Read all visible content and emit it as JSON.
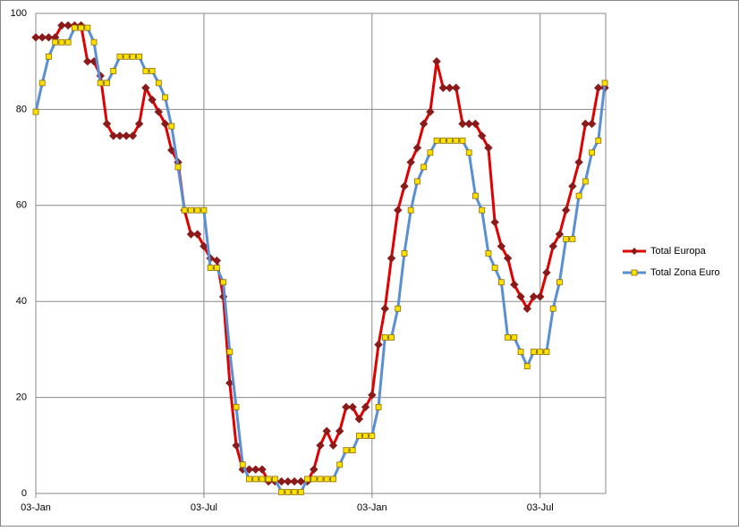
{
  "chart_data": {
    "type": "line",
    "categories": [
      "03-Jan",
      null,
      null,
      null,
      null,
      null,
      null,
      null,
      null,
      null,
      null,
      null,
      null,
      null,
      null,
      null,
      null,
      null,
      null,
      null,
      null,
      null,
      null,
      null,
      null,
      null,
      "03-Jul",
      null,
      null,
      null,
      null,
      null,
      null,
      null,
      null,
      null,
      null,
      null,
      null,
      null,
      null,
      null,
      null,
      null,
      null,
      null,
      null,
      null,
      null,
      null,
      null,
      null,
      "03-Jan",
      null,
      null,
      null,
      null,
      null,
      null,
      null,
      null,
      null,
      null,
      null,
      null,
      null,
      null,
      null,
      null,
      null,
      null,
      null,
      null,
      null,
      null,
      null,
      null,
      null,
      "03-Jul",
      null,
      null,
      null,
      null,
      null,
      null,
      null,
      null,
      null,
      null
    ],
    "series": [
      {
        "name": "Total Europa",
        "color": "#e00000",
        "marker": "diamond",
        "marker_color": "#8b1a1a",
        "values": [
          95,
          95,
          95,
          95,
          97.5,
          97.5,
          97.5,
          97.5,
          90,
          90,
          87,
          77,
          74.5,
          74.5,
          74.5,
          74.5,
          77,
          84.5,
          82,
          79.5,
          77,
          71.5,
          69,
          59,
          54,
          54,
          51.5,
          49,
          48.5,
          41,
          23,
          10,
          5,
          5,
          5,
          5,
          2.5,
          2.5,
          2.5,
          2.5,
          2.5,
          2.5,
          2.5,
          5,
          10,
          13,
          10,
          13,
          18,
          18,
          15.5,
          18,
          20.5,
          31,
          38.5,
          49,
          59,
          64,
          69,
          72,
          77,
          79.5,
          90,
          84.5,
          84.5,
          84.5,
          77,
          77,
          77,
          74.5,
          72,
          56.5,
          51.5,
          49,
          43.5,
          41,
          38.5,
          41,
          41,
          46,
          51.5,
          54,
          59,
          64,
          69,
          77,
          77,
          84.5,
          84.5
        ]
      },
      {
        "name": "Total Zona Euro",
        "color": "#5b8fd4",
        "marker": "square",
        "marker_color": "#ffe000",
        "values": [
          79.5,
          85.5,
          91,
          94,
          94,
          94,
          97,
          97,
          97,
          94,
          85.5,
          85.5,
          88,
          91,
          91,
          91,
          91,
          88,
          88,
          85.5,
          82.5,
          76.5,
          68,
          59,
          59,
          59,
          59,
          47,
          47,
          44,
          29.5,
          18,
          6,
          3,
          3,
          3,
          3,
          3,
          0.3,
          0.3,
          0.3,
          0.3,
          3,
          3,
          3,
          3,
          3,
          6,
          9,
          9,
          12,
          12,
          12,
          18,
          32.5,
          32.5,
          38.5,
          50,
          59,
          65,
          68,
          71,
          73.5,
          73.5,
          73.5,
          73.5,
          73.5,
          71,
          62,
          59,
          50,
          47,
          44,
          32.5,
          32.5,
          29.5,
          26.5,
          29.5,
          29.5,
          29.5,
          38.5,
          44,
          53,
          53,
          62,
          65,
          71,
          73.5,
          85.5
        ]
      }
    ],
    "ylim": [
      0,
      100
    ],
    "yticks": [
      0,
      20,
      40,
      60,
      80,
      100
    ],
    "grid": true,
    "legend": "right"
  }
}
